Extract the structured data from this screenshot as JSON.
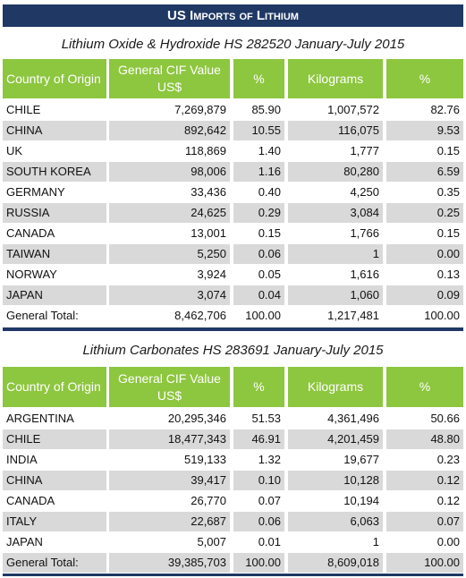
{
  "title": "US Imports of Lithium",
  "tables": [
    {
      "caption": "Lithium Oxide & Hydroxide HS 282520 January-July 2015",
      "columns": [
        "Country of Origin",
        "General CIF Value US$",
        "%",
        "Kilograms",
        "%"
      ],
      "rows": [
        [
          "CHILE",
          "7,269,879",
          "85.90",
          "1,007,572",
          "82.76"
        ],
        [
          "CHINA",
          "892,642",
          "10.55",
          "116,075",
          "9.53"
        ],
        [
          "UK",
          "118,869",
          "1.40",
          "1,777",
          "0.15"
        ],
        [
          "SOUTH KOREA",
          "98,006",
          "1.16",
          "80,280",
          "6.59"
        ],
        [
          "GERMANY",
          "33,436",
          "0.40",
          "4,250",
          "0.35"
        ],
        [
          "RUSSIA",
          "24,625",
          "0.29",
          "3,084",
          "0.25"
        ],
        [
          "CANADA",
          "13,001",
          "0.15",
          "1,766",
          "0.15"
        ],
        [
          "TAIWAN",
          "5,250",
          "0.06",
          "1",
          "0.00"
        ],
        [
          "NORWAY",
          "3,924",
          "0.05",
          "1,616",
          "0.13"
        ],
        [
          "JAPAN",
          "3,074",
          "0.04",
          "1,060",
          "0.09"
        ],
        [
          "General Total:",
          "8,462,706",
          "100.00",
          "1,217,481",
          "100.00"
        ]
      ]
    },
    {
      "caption": "Lithium Carbonates HS 283691 January-July 2015",
      "columns": [
        "Country of Origin",
        "General CIF Value US$",
        "%",
        "Kilograms",
        "%"
      ],
      "rows": [
        [
          "ARGENTINA",
          "20,295,346",
          "51.53",
          "4,361,496",
          "50.66"
        ],
        [
          "CHILE",
          "18,477,343",
          "46.91",
          "4,201,459",
          "48.80"
        ],
        [
          "INDIA",
          "519,133",
          "1.32",
          "19,677",
          "0.23"
        ],
        [
          "CHINA",
          "39,417",
          "0.10",
          "10,128",
          "0.12"
        ],
        [
          "CANADA",
          "26,770",
          "0.07",
          "10,194",
          "0.12"
        ],
        [
          "ITALY",
          "22,687",
          "0.06",
          "6,063",
          "0.07"
        ],
        [
          "JAPAN",
          "5,007",
          "0.01",
          "1",
          "0.00"
        ],
        [
          "General Total:",
          "39,385,703",
          "100.00",
          "8,609,018",
          "100.00"
        ]
      ]
    }
  ]
}
